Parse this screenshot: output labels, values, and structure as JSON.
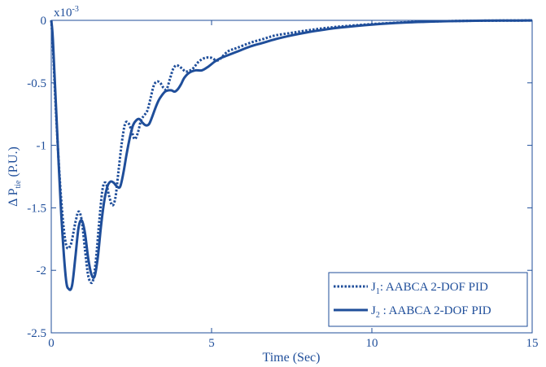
{
  "chart_data": {
    "type": "line",
    "xlabel": "Time (Sec)",
    "ylabel_main": "Δ P",
    "ylabel_sub": "tie",
    "ylabel_unit": "(P.U.)",
    "y_multiplier": "x10",
    "y_multiplier_exp": "-3",
    "xlim": [
      0,
      15
    ],
    "ylim": [
      -2.5,
      0
    ],
    "x_ticks": [
      0,
      5,
      10,
      15
    ],
    "x_tick_labels": [
      "0",
      "5",
      "10",
      "15"
    ],
    "y_ticks": [
      0,
      -0.5,
      -1,
      -1.5,
      -2,
      -2.5
    ],
    "y_tick_labels": [
      "0",
      "-0.5",
      "-1",
      "-1.5",
      "-2",
      "-2.5"
    ],
    "grid": false,
    "legend_position": "bottom-right",
    "color": "#1f4e9a",
    "series": [
      {
        "name": "J1: AABCA 2-DOF PID",
        "legend_main": "J",
        "legend_sub": "1",
        "legend_rest": ": AABCA 2-DOF PID",
        "style": "dotted",
        "x": [
          0,
          0.05,
          0.15,
          0.3,
          0.45,
          0.6,
          0.75,
          0.85,
          0.95,
          1.05,
          1.15,
          1.25,
          1.32,
          1.4,
          1.5,
          1.6,
          1.7,
          1.8,
          1.9,
          2.0,
          2.1,
          2.2,
          2.3,
          2.4,
          2.5,
          2.6,
          2.7,
          2.8,
          2.9,
          3.0,
          3.1,
          3.2,
          3.3,
          3.4,
          3.5,
          3.6,
          3.7,
          3.8,
          3.9,
          4.0,
          4.1,
          4.2,
          4.4,
          4.6,
          4.8,
          5.0,
          5.2,
          5.5,
          5.8,
          6.2,
          6.6,
          7.0,
          7.5,
          8.0,
          8.5,
          9.0,
          10.0,
          11.0,
          12.0,
          13.0,
          14.0,
          15.0
        ],
        "y": [
          0,
          -0.2,
          -0.75,
          -1.4,
          -1.78,
          -1.8,
          -1.62,
          -1.53,
          -1.6,
          -1.83,
          -2.04,
          -2.1,
          -2.06,
          -1.9,
          -1.6,
          -1.35,
          -1.3,
          -1.4,
          -1.48,
          -1.42,
          -1.2,
          -0.98,
          -0.83,
          -0.82,
          -0.88,
          -0.95,
          -0.9,
          -0.8,
          -0.76,
          -0.72,
          -0.62,
          -0.52,
          -0.49,
          -0.5,
          -0.54,
          -0.55,
          -0.47,
          -0.39,
          -0.36,
          -0.37,
          -0.39,
          -0.41,
          -0.39,
          -0.33,
          -0.3,
          -0.3,
          -0.32,
          -0.25,
          -0.22,
          -0.18,
          -0.15,
          -0.12,
          -0.1,
          -0.08,
          -0.063,
          -0.05,
          -0.03,
          -0.016,
          -0.008,
          -0.004,
          -0.002,
          -0.001
        ]
      },
      {
        "name": "J2 : AABCA 2-DOF PID",
        "legend_main": "J",
        "legend_sub": "2",
        "legend_rest": " : AABCA 2-DOF PID",
        "style": "solid",
        "x": [
          0,
          0.05,
          0.15,
          0.3,
          0.45,
          0.55,
          0.65,
          0.75,
          0.85,
          0.95,
          1.05,
          1.15,
          1.25,
          1.35,
          1.45,
          1.55,
          1.65,
          1.75,
          1.85,
          1.95,
          2.05,
          2.15,
          2.25,
          2.35,
          2.45,
          2.55,
          2.65,
          2.75,
          2.85,
          2.95,
          3.05,
          3.15,
          3.25,
          3.35,
          3.45,
          3.55,
          3.65,
          3.75,
          3.85,
          3.95,
          4.05,
          4.15,
          4.3,
          4.5,
          4.7,
          4.9,
          5.1,
          5.3,
          5.5,
          5.8,
          6.2,
          6.6,
          7.0,
          7.5,
          8.0,
          8.5,
          9.0,
          10.0,
          11.0,
          12.0,
          13.0,
          14.0,
          15.0
        ],
        "y": [
          0,
          -0.15,
          -0.7,
          -1.5,
          -2.05,
          -2.15,
          -2.12,
          -1.9,
          -1.66,
          -1.6,
          -1.7,
          -1.9,
          -2.03,
          -2.05,
          -1.9,
          -1.65,
          -1.45,
          -1.33,
          -1.29,
          -1.3,
          -1.33,
          -1.33,
          -1.22,
          -1.07,
          -0.94,
          -0.84,
          -0.8,
          -0.79,
          -0.82,
          -0.84,
          -0.83,
          -0.77,
          -0.7,
          -0.64,
          -0.6,
          -0.57,
          -0.56,
          -0.56,
          -0.57,
          -0.55,
          -0.51,
          -0.46,
          -0.42,
          -0.4,
          -0.4,
          -0.37,
          -0.33,
          -0.3,
          -0.28,
          -0.25,
          -0.21,
          -0.18,
          -0.15,
          -0.12,
          -0.095,
          -0.075,
          -0.058,
          -0.034,
          -0.018,
          -0.009,
          -0.004,
          -0.002,
          -0.001
        ]
      }
    ]
  }
}
